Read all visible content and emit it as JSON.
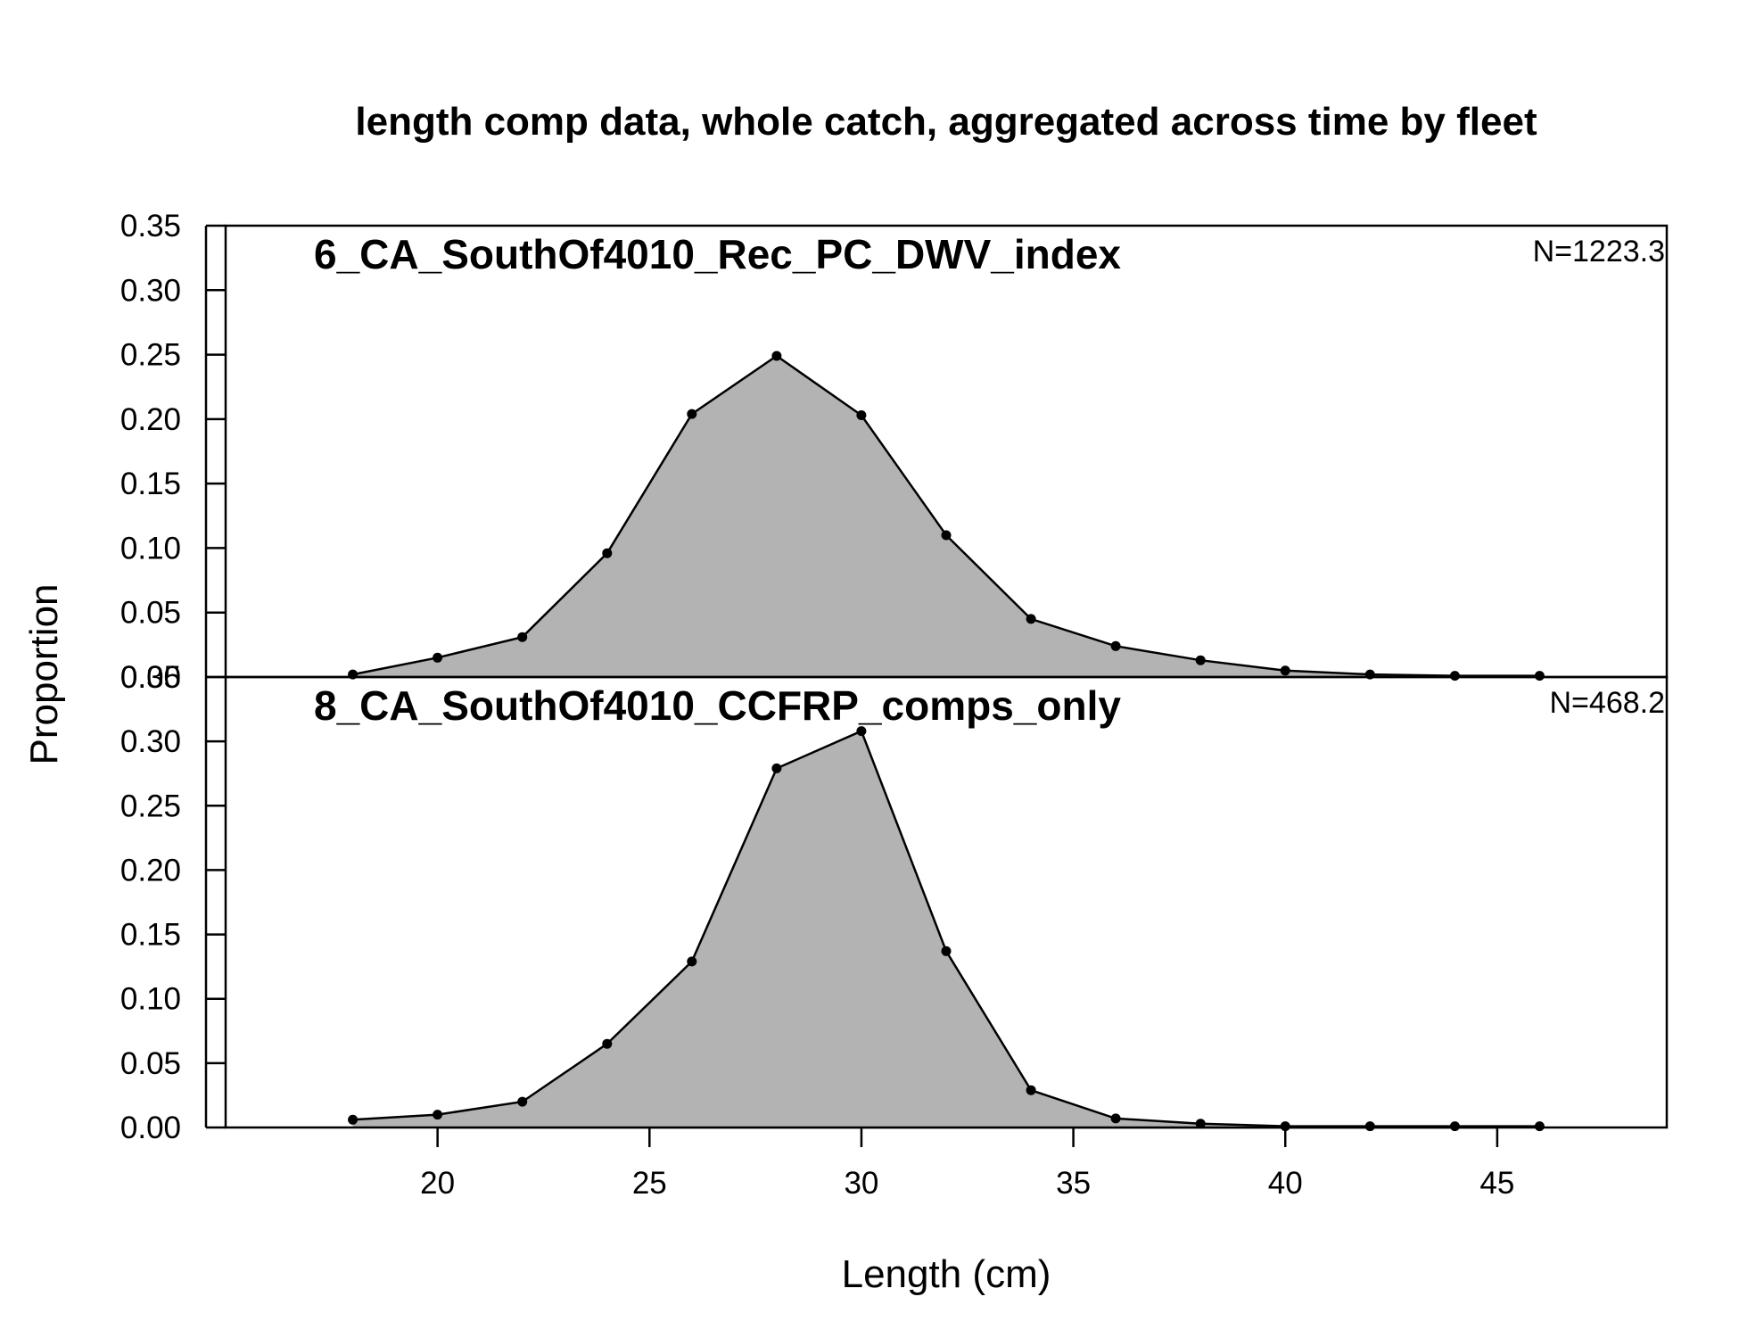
{
  "title": "length comp data, whole catch, aggregated across time by fleet",
  "colors": {
    "fill": "#b3b3b3",
    "line": "#000000",
    "point": "#000000"
  },
  "chart_data": {
    "type": "area",
    "xlabel": "Length (cm)",
    "ylabel": "Proportion",
    "xlim": [
      15,
      49
    ],
    "ylim": [
      0,
      0.35
    ],
    "x_ticks": [
      "20",
      "25",
      "30",
      "35",
      "40",
      "45"
    ],
    "y_ticks": [
      "0.00",
      "0.05",
      "0.10",
      "0.15",
      "0.20",
      "0.25",
      "0.30",
      "0.35"
    ],
    "grid": false,
    "panels": [
      {
        "name": "6_CA_SouthOf4010_Rec_PC_DWV_index",
        "n_label": "N=1223.3",
        "x": [
          18,
          20,
          22,
          24,
          26,
          28,
          30,
          32,
          34,
          36,
          38,
          40,
          42,
          44,
          46
        ],
        "values": [
          0.002,
          0.015,
          0.031,
          0.096,
          0.204,
          0.249,
          0.203,
          0.11,
          0.045,
          0.024,
          0.013,
          0.005,
          0.002,
          0.001,
          0.001
        ]
      },
      {
        "name": "8_CA_SouthOf4010_CCFRP_comps_only",
        "n_label": "N=468.2",
        "x": [
          18,
          20,
          22,
          24,
          26,
          28,
          30,
          32,
          34,
          36,
          38,
          40,
          42,
          44,
          46
        ],
        "values": [
          0.006,
          0.01,
          0.02,
          0.065,
          0.129,
          0.279,
          0.308,
          0.137,
          0.029,
          0.007,
          0.003,
          0.001,
          0.001,
          0.001,
          0.001
        ]
      }
    ]
  }
}
